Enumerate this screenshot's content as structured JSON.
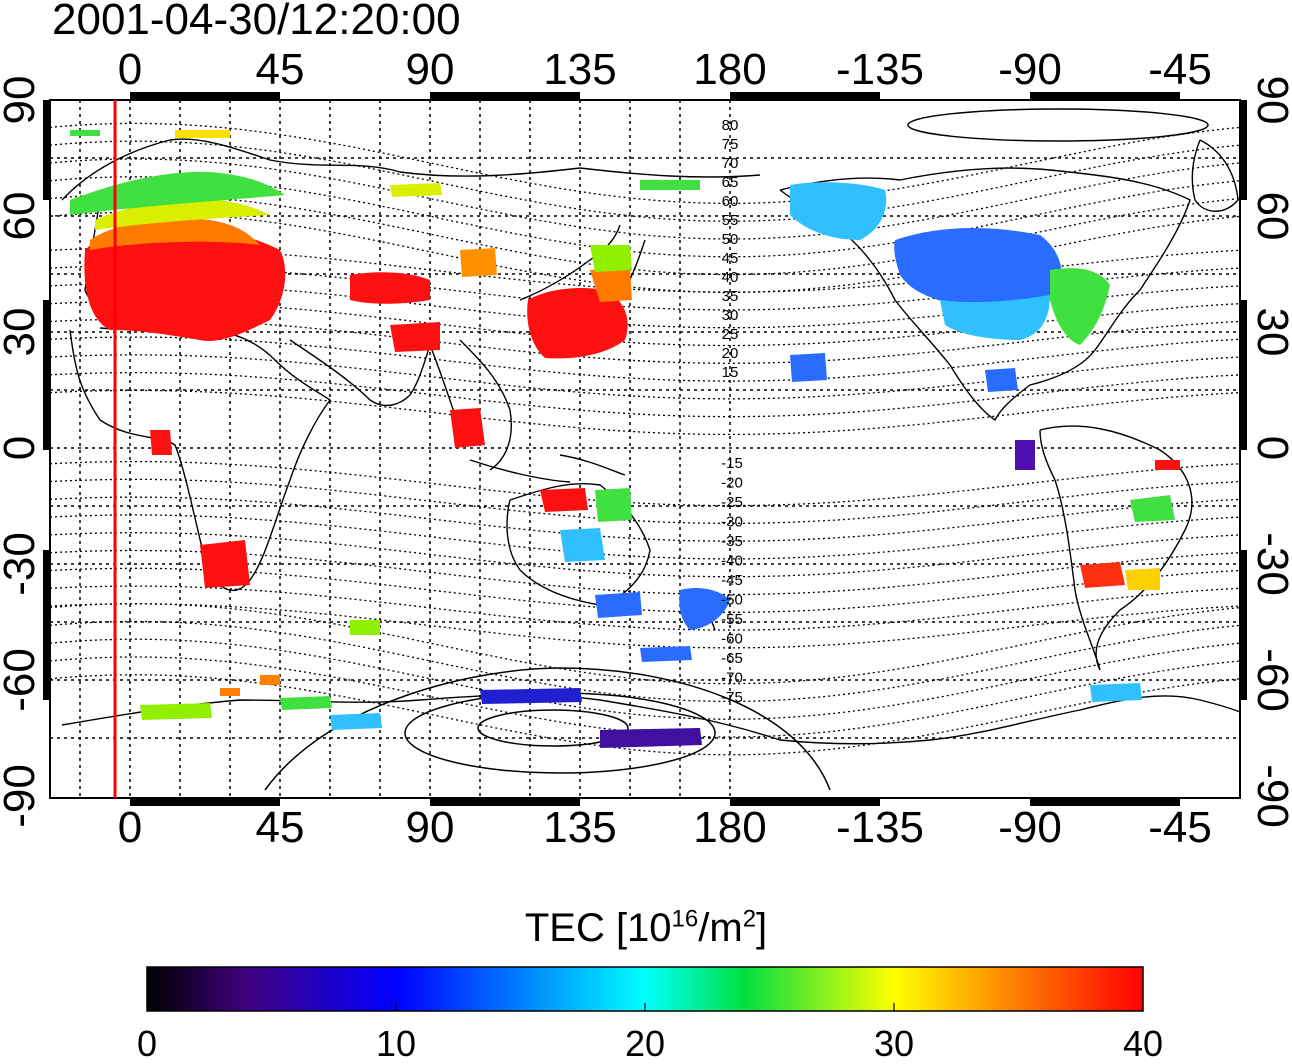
{
  "title": "2001-04-30/12:20:00",
  "map": {
    "top_lon_ticks": [
      "0",
      "45",
      "90",
      "135",
      "180",
      "-135",
      "-90",
      "-45"
    ],
    "bottom_lon_ticks": [
      "0",
      "45",
      "90",
      "135",
      "180",
      "-135",
      "-90",
      "-45"
    ],
    "left_lat_ticks": [
      "90",
      "60",
      "30",
      "0",
      "-30",
      "-60",
      "-90"
    ],
    "right_lat_ticks": [
      "90",
      "60",
      "30",
      "0",
      "-30",
      "-60",
      "-90"
    ],
    "contour_labels_north": [
      "80",
      "75",
      "70",
      "65",
      "60",
      "55",
      "50",
      "45",
      "40",
      "35",
      "30",
      "25",
      "20",
      "15"
    ],
    "contour_labels_south": [
      "-15",
      "-20",
      "-25",
      "-30",
      "-35",
      "-40",
      "-45",
      "-50",
      "-55",
      "-60",
      "-65",
      "-70",
      "-75"
    ],
    "marker_line_color": "#ff0000"
  },
  "colorbar": {
    "label_main": "TEC  [10",
    "label_sup1": "16",
    "label_mid": "/m",
    "label_sup2": "2",
    "label_end": "]",
    "ticks": [
      "0",
      "10",
      "20",
      "30",
      "40"
    ],
    "colors": [
      "#000000",
      "#400080",
      "#0000ff",
      "#00ffff",
      "#00ff00",
      "#ffff00",
      "#ff8000",
      "#ff0000"
    ]
  }
}
